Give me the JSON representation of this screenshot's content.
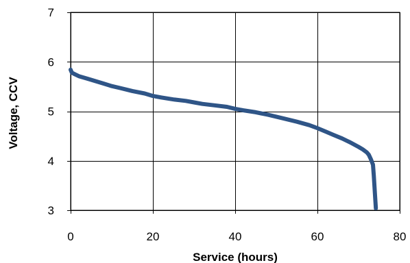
{
  "chart_data": {
    "type": "line",
    "title": "",
    "xlabel": "Service (hours)",
    "ylabel": "Voltage, CCV",
    "xlim": [
      0,
      80
    ],
    "ylim": [
      3,
      7
    ],
    "xticks": [
      0,
      20,
      40,
      60,
      80
    ],
    "yticks": [
      3,
      4,
      5,
      6,
      7
    ],
    "xtick_labels": [
      "0",
      "20",
      "40",
      "60",
      "80"
    ],
    "ytick_labels": [
      "3",
      "4",
      "5",
      "6",
      "7"
    ],
    "grid": true,
    "legend": "none",
    "series": [
      {
        "color": "#2F5587",
        "x": [
          0,
          0.3,
          1,
          2,
          4,
          6,
          8,
          10,
          12,
          15,
          18,
          20,
          22,
          25,
          28,
          30,
          32,
          35,
          38,
          40,
          42,
          45,
          48,
          50,
          52,
          55,
          58,
          60,
          62,
          64,
          66,
          68,
          70,
          71,
          72,
          72.5,
          73,
          73.5,
          73.7,
          74,
          74.2
        ],
        "y": [
          5.84,
          5.78,
          5.75,
          5.71,
          5.66,
          5.61,
          5.56,
          5.51,
          5.47,
          5.41,
          5.36,
          5.31,
          5.28,
          5.24,
          5.21,
          5.18,
          5.15,
          5.12,
          5.09,
          5.05,
          5.02,
          4.98,
          4.93,
          4.89,
          4.85,
          4.79,
          4.72,
          4.66,
          4.59,
          4.52,
          4.45,
          4.37,
          4.28,
          4.23,
          4.17,
          4.12,
          4.03,
          3.92,
          3.7,
          3.3,
          3.04
        ]
      }
    ]
  }
}
